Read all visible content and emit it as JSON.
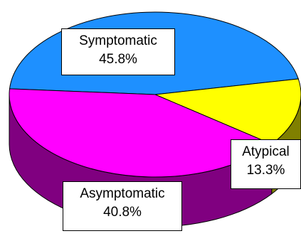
{
  "chart_data": {
    "type": "pie",
    "title": "",
    "slices": [
      {
        "label": "Symptomatic",
        "value_label": "45.8%",
        "value": 45.8,
        "color": "#1E90FF",
        "side_color": "#0F4F99"
      },
      {
        "label": "Atypical",
        "value_label": "13.3%",
        "value": 13.3,
        "color": "#FFFF00",
        "side_color": "#808000"
      },
      {
        "label": "Asymptomatic",
        "value_label": "40.8%",
        "value": 40.8,
        "color": "#FF00FF",
        "side_color": "#800080"
      }
    ],
    "style": "3d",
    "legend": "none"
  }
}
